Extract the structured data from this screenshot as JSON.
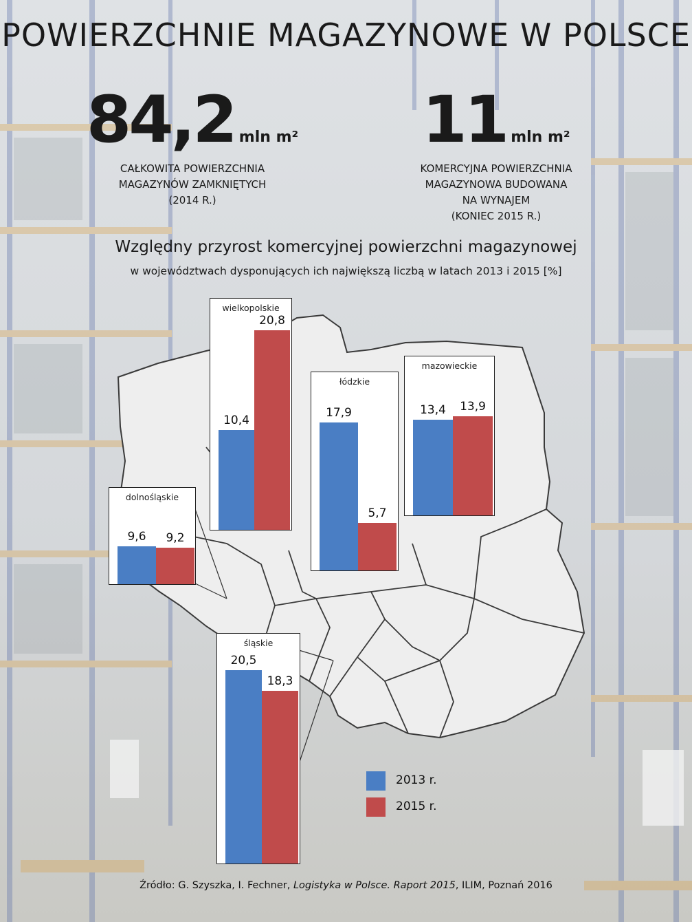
{
  "title": "POWIERZCHNIE MAGAZYNOWE W POLSCE",
  "stats": [
    {
      "value": "84,2",
      "unit": "mln m²",
      "caption_lines": [
        "CAŁKOWITA POWIERZCHNIA",
        "MAGAZYNÓW  ZAMKNIĘTYCH",
        "(2014 R.)"
      ]
    },
    {
      "value": "11",
      "unit": "mln m²",
      "caption_lines": [
        "KOMERCYJNA POWIERZCHNIA",
        "MAGAZYNOWA BUDOWANA",
        "NA WYNAJEM",
        "(KONIEC 2015 R.)"
      ]
    }
  ],
  "subtitle": "Względny przyrost komercyjnej powierzchni magazynowej",
  "subtitle2": "w województwach dysponujących ich największą liczbą w latach 2013 i 2015 [%]",
  "legend": [
    {
      "label": "2013 r.",
      "color": "#4a7ec4"
    },
    {
      "label": "2015 r.",
      "color": "#c04b4b"
    }
  ],
  "source": {
    "prefix": "Źródło: G. Szyszka, I. Fechner, ",
    "italic": "Logistyka w Polsce. Raport 2015",
    "suffix": ", ILIM, Poznań 2016"
  },
  "chart_data": {
    "type": "bar",
    "series_names": [
      "2013 r.",
      "2015 r."
    ],
    "colors": {
      "2013": "#4a7ec4",
      "2015": "#c04b4b"
    },
    "regions": [
      {
        "name": "wielkopolskie",
        "values": [
          10.4,
          20.8
        ],
        "labels": [
          "10,4",
          "20,8"
        ]
      },
      {
        "name": "łódzkie",
        "values": [
          17.9,
          5.7
        ],
        "labels": [
          "17,9",
          "5,7"
        ]
      },
      {
        "name": "mazowieckie",
        "values": [
          13.4,
          13.9
        ],
        "labels": [
          "13,4",
          "13,9"
        ]
      },
      {
        "name": "dolnośląskie",
        "values": [
          9.6,
          9.2
        ],
        "labels": [
          "9,6",
          "9,2"
        ]
      },
      {
        "name": "śląskie",
        "values": [
          20.5,
          18.3
        ],
        "labels": [
          "20,5",
          "18,3"
        ]
      }
    ]
  }
}
